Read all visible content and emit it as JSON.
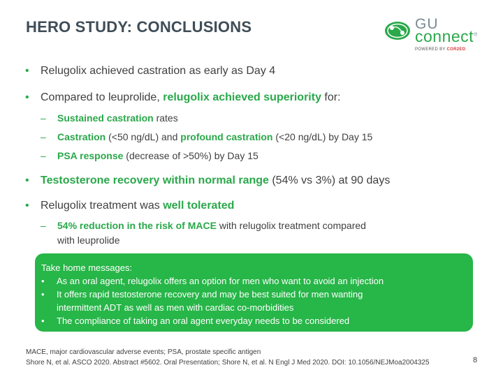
{
  "slide": {
    "title": "HERO STUDY: CONCLUSIONS",
    "logo": {
      "line1": "GU",
      "line2": "connect",
      "reg": "®",
      "powered_prefix": "POWERED BY",
      "powered_brand": "COR2ED"
    },
    "bullet1": "Relugolix achieved castration as early as Day 4",
    "bullet2": {
      "pre": "Compared to leuprolide, ",
      "bold": "relugolix achieved superiority",
      "post": " for:"
    },
    "sub1": {
      "bold": "Sustained castration",
      "post": " rates"
    },
    "sub2": {
      "bold1": "Castration",
      "mid1": " (<50 ng/dL) and ",
      "bold2": "profound castration",
      "post": " (<20 ng/dL) by Day 15"
    },
    "sub3": {
      "bold": "PSA response",
      "post": " (decrease of >50%) by Day 15"
    },
    "bullet3": {
      "bold": "Testosterone recovery within normal range",
      "post": " (54% vs 3%) at 90 days"
    },
    "bullet4": {
      "pre": "Relugolix treatment was ",
      "bold": "well tolerated"
    },
    "sub4": {
      "bold": "54% reduction in the risk of MACE",
      "post": " with relugolix treatment compared",
      "line2": "with leuprolide"
    },
    "takehome": {
      "heading": "Take home messages:",
      "items": [
        "As an oral agent, relugolix offers an option for men who want to avoid an injection",
        "It offers rapid testosterone recovery and may be best suited for men wanting",
        "The compliance of taking an oral agent everyday needs to be considered"
      ],
      "item2_cont": "intermittent ADT as well as men with cardiac co-morbidities"
    },
    "footer": {
      "line1": "MACE, major cardiovascular adverse events; PSA, prostate specific antigen",
      "line2": "Shore N, et al. ASCO 2020. Abstract #5602. Oral Presentation; Shore N, et al. N Engl J Med 2020. DOI: 10.1056/NEJMoa2004325"
    },
    "page_number": "8",
    "bullet_glyph": "•",
    "dash_glyph": "–"
  }
}
